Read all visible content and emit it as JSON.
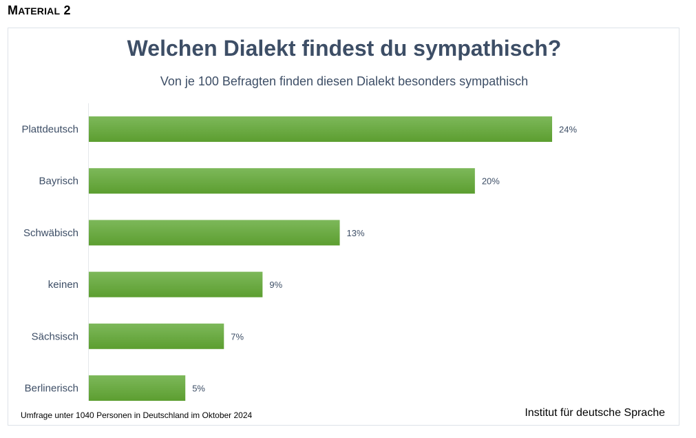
{
  "header": {
    "material_label_big": "M",
    "material_label_small": "ATERIAL",
    "material_number": "2"
  },
  "chart_data": {
    "type": "bar",
    "orientation": "horizontal",
    "title": "Welchen Dialekt findest du sympathisch?",
    "subtitle": "Von je 100 Befragten finden diesen Dialekt besonders sympathisch",
    "categories": [
      "Plattdeutsch",
      "Bayrisch",
      "Schwäbisch",
      "keinen",
      "Sächsisch",
      "Berlinerisch"
    ],
    "values": [
      24,
      20,
      13,
      9,
      7,
      5
    ],
    "value_labels": [
      "24%",
      "20%",
      "13%",
      "9%",
      "7%",
      "5%"
    ],
    "unit": "%",
    "xlim": [
      0,
      24
    ],
    "grid": false,
    "bar_color_top": "#7db85a",
    "bar_color_bottom": "#5c9e30",
    "footnote": "Umfrage unter 1040 Personen in Deutschland im Oktober 2024",
    "source": "Institut für deutsche Sprache"
  }
}
